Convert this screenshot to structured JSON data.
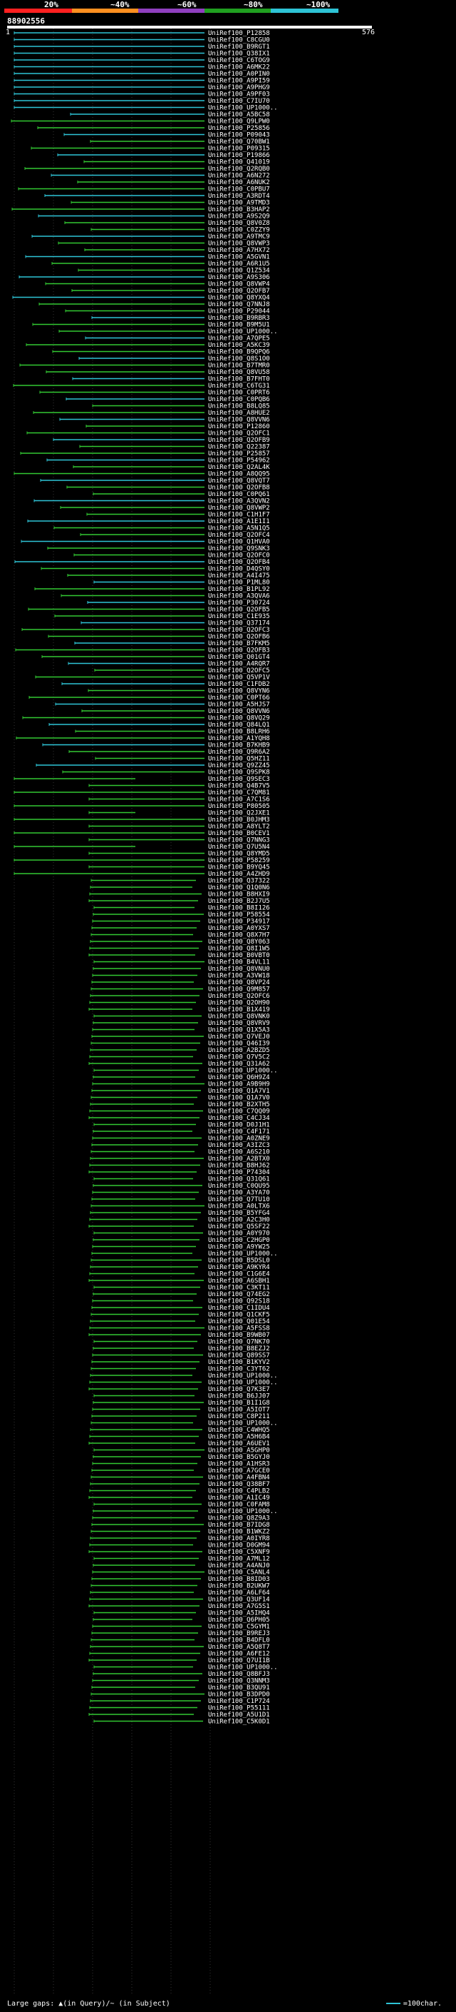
{
  "scale": {
    "labels": [
      {
        "text": "20%",
        "color": "#ff2020"
      },
      {
        "text": "~40%",
        "color": "#ff9020"
      },
      {
        "text": "~60%",
        "color": "#9040c0"
      },
      {
        "text": "~80%",
        "color": "#20a020"
      },
      {
        "text": "~100%",
        "color": "#2ec4d6"
      }
    ]
  },
  "query": {
    "id": "88902556",
    "start": "1",
    "end": "576"
  },
  "colors": {
    "high": "#2ec4d6",
    "mid": "#32c832",
    "gap": "#ffffff"
  },
  "hits": [
    "UniRef100_P12858",
    "UniRef100_C8CGU0",
    "UniRef100_B9RGT1",
    "UniRef100_Q38IX1",
    "UniRef100_C6TOG9",
    "UniRef100_A6MK22",
    "UniRef100_A0PIN0",
    "UniRef100_A9PI59",
    "UniRef100_A9PHG9",
    "UniRef100_A9PF03",
    "UniRef100_C7IU70",
    "UniRef100_UP1000..",
    "UniRef100_A5BC58",
    "UniRef100_Q9LPW0",
    "UniRef100_P25856",
    "UniRef100_P09043",
    "UniRef100_Q70BW1",
    "UniRef100_P09315",
    "UniRef100_P19866",
    "UniRef100_Q41019",
    "UniRef100_Q2RQB0",
    "UniRef100_A6N272",
    "UniRef100_A6NUK2",
    "UniRef100_C0PBU7",
    "UniRef100_A3RDT4",
    "UniRef100_A9TMD3",
    "UniRef100_B3HAP2",
    "UniRef100_A9S2Q9",
    "UniRef100_Q8V0Z8",
    "UniRef100_C0ZZY9",
    "UniRef100_A9TMC9",
    "UniRef100_Q8VWP3",
    "UniRef100_A7HX72",
    "UniRef100_A5GVN1",
    "UniRef100_A6R1U5",
    "UniRef100_Q1Z534",
    "UniRef100_A9S306",
    "UniRef100_Q8VWP4",
    "UniRef100_Q2OFB7",
    "UniRef100_Q8YXQ4",
    "UniRef100_Q7NNJ8",
    "UniRef100_P29044",
    "UniRef100_B9RBR3",
    "UniRef100_B9M5U1",
    "UniRef100_UP1000..",
    "UniRef100_A7QPE5",
    "UniRef100_A5KC39",
    "UniRef100_B9QPQ6",
    "UniRef100_Q8S1O0",
    "UniRef100_B7TMR0",
    "UniRef100_Q8VU58",
    "UniRef100_B7FHT0",
    "UniRef100_C6TG31",
    "UniRef100_C0PRT6",
    "UniRef100_C0PQB6",
    "UniRef100_B8LQ85",
    "UniRef100_A8HUE2",
    "UniRef100_Q8VVN6",
    "UniRef100_P12860",
    "UniRef100_Q2OFC1",
    "UniRef100_Q2OFB9",
    "UniRef100_Q22387",
    "UniRef100_P25857",
    "UniRef100_P54962",
    "UniRef100_Q2AL4K",
    "UniRef100_A8QQ95",
    "UniRef100_Q8VQT7",
    "UniRef100_Q2OFB8",
    "UniRef100_C0PQ61",
    "UniRef100_A3QVN2",
    "UniRef100_Q8VWP2",
    "UniRef100_C1H1F7",
    "UniRef100_A1E1I1",
    "UniRef100_A5N1Q5",
    "UniRef100_Q2OFC4",
    "UniRef100_Q1HVA0",
    "UniRef100_Q9SNK3",
    "UniRef100_Q2OFC0",
    "UniRef100_Q2OFB4",
    "UniRef100_D4QSY0",
    "UniRef100_A4I475",
    "UniRef100_P1ML80",
    "UniRef100_B1PL92",
    "UniRef100_A3QVA6",
    "UniRef100_P30724",
    "UniRef100_Q2OFB5",
    "UniRef100_C1E935",
    "UniRef100_Q37174",
    "UniRef100_Q2OFC3",
    "UniRef100_Q2OFB6",
    "UniRef100_B7FKM5",
    "UniRef100_Q2OFB3",
    "UniRef100_Q01GT4",
    "UniRef100_A4RQR7",
    "UniRef100_Q2OFC5",
    "UniRef100_Q5VP1V",
    "UniRef100_C1FDB2",
    "UniRef100_Q8VYN6",
    "UniRef100_C0PT66",
    "UniRef100_A5HJS7",
    "UniRef100_Q8VVN6",
    "UniRef100_Q8VQ29",
    "UniRef100_Q84LQ1",
    "UniRef100_B8LRH6",
    "UniRef100_A1YQH8",
    "UniRef100_B7KHB9",
    "UniRef100_Q9R6A2",
    "UniRef100_Q5HZ11",
    "UniRef100_Q9ZZ45",
    "UniRef100_Q9SPK8",
    "UniRef100_Q9SEC3",
    "UniRef100_Q4B7V5",
    "UniRef100_C7QM81",
    "UniRef100_A7C1S6",
    "UniRef100_P80505",
    "UniRef100_Q2JXE1",
    "UniRef100_B0JHM3",
    "UniRef100_A8YLT2",
    "UniRef100_B0CEV1",
    "UniRef100_Q7NNG3",
    "UniRef100_Q7U5N4",
    "UniRef100_Q8YMD5",
    "UniRef100_P58259",
    "UniRef100_B9YQ45",
    "UniRef100_A4ZHD9",
    "UniRef100_Q37322",
    "UniRef100_Q1Q0N6",
    "UniRef100_B8HXI9",
    "UniRef100_B2J7U5",
    "UniRef100_B8I126",
    "UniRef100_P58554",
    "UniRef100_P34917",
    "UniRef100_A0YXS7",
    "UniRef100_Q8X7H7",
    "UniRef100_Q8Y063",
    "UniRef100_Q8I1W5",
    "UniRef100_B0VBT0",
    "UniRef100_B4VL11",
    "UniRef100_Q8VNU0",
    "UniRef100_A3VW18",
    "UniRef100_Q8VP24",
    "UniRef100_Q9M857",
    "UniRef100_Q2OFC6",
    "UniRef100_Q2OH90",
    "UniRef100_B1X419",
    "UniRef100_Q8VNK0",
    "UniRef100_Q8VRV9",
    "UniRef100_Q1X5A3",
    "UniRef100_Q7VEJ0",
    "UniRef100_Q46I39",
    "UniRef100_A2BZD5",
    "UniRef100_Q7V5C2",
    "UniRef100_Q31A62",
    "UniRef100_UP1000..",
    "UniRef100_Q6H9Z4",
    "UniRef100_A9B9H9",
    "UniRef100_Q1A7V1",
    "UniRef100_Q1A7V0",
    "UniRef100_B2XTH5",
    "UniRef100_C7QQ09",
    "UniRef100_C4CJ34",
    "UniRef100_D0J1H1",
    "UniRef100_C4F171",
    "UniRef100_A0ZNE9",
    "UniRef100_A3IZC3",
    "UniRef100_A6S210",
    "UniRef100_A2BTX0",
    "UniRef100_B8HJ62",
    "UniRef100_P74304",
    "UniRef100_Q31Q61",
    "UniRef100_C0QU95",
    "UniRef100_A3YA70",
    "UniRef100_Q7TU10",
    "UniRef100_A0LTX6",
    "UniRef100_B5YFG4",
    "UniRef100_A2C3H0",
    "UniRef100_Q5SF22",
    "UniRef100_A0Y970",
    "UniRef100_C2HGP0",
    "UniRef100_A9YW25",
    "UniRef100_UP1000..",
    "UniRef100_B5DSL0",
    "UniRef100_A9KYR4",
    "UniRef100_C1G6E4",
    "UniRef100_A6SBH1",
    "UniRef100_C3KT11",
    "UniRef100_Q74EG2",
    "UniRef100_Q92S18",
    "UniRef100_C1IDU4",
    "UniRef100_Q1CKF5",
    "UniRef100_Q01E54",
    "UniRef100_A5FSS8",
    "UniRef100_B9WB07",
    "UniRef100_Q7NK70",
    "UniRef100_B8EZJ2",
    "UniRef100_Q89SS7",
    "UniRef100_B1KYV2",
    "UniRef100_C3YT62",
    "UniRef100_UP1000..",
    "UniRef100_UP1000..",
    "UniRef100_Q7K3E7",
    "UniRef100_B6JJ07",
    "UniRef100_B1I1G8",
    "UniRef100_A5IOT7",
    "UniRef100_C8P211",
    "UniRef100_UP1000..",
    "UniRef100_C4WHQ5",
    "UniRef100_A5H6B4",
    "UniRef100_A6UEV1",
    "UniRef100_A5GHP0",
    "UniRef100_B5GYJ0",
    "UniRef100_A1HSR3",
    "UniRef100_A7GCE0",
    "UniRef100_A4FBN4",
    "UniRef100_Q38BF7",
    "UniRef100_C4PLB2",
    "UniRef100_A1IC49",
    "UniRef100_C0FAM8",
    "UniRef100_UP1000..",
    "UniRef100_Q8Z9A3",
    "UniRef100_B7IDG8",
    "UniRef100_B1WKZ2",
    "UniRef100_A0IYR8",
    "UniRef100_D0GM94",
    "UniRef100_C5XNF9",
    "UniRef100_A7ML12",
    "UniRef100_A4ANJ0",
    "UniRef100_C5ANL4",
    "UniRef100_B8ID03",
    "UniRef100_B2UKW7",
    "UniRef100_A6LF64",
    "UniRef100_Q3UF14",
    "UniRef100_A7G5S1",
    "UniRef100_A5IHQ4",
    "UniRef100_Q6PH05",
    "UniRef100_C5GYM1",
    "UniRef100_B9REJ3",
    "UniRef100_B4DFL0",
    "UniRef100_A5Q8T7",
    "UniRef100_A6FE12",
    "UniRef100_Q7UI1B",
    "UniRef100_UP1000..",
    "UniRef100_Q8BFJ3",
    "UniRef100_Q3NNM3",
    "UniRef100_B3QU91",
    "UniRef100_B3DPD0",
    "UniRef100_C1P724",
    "UniRef100_P55111",
    "UniRef100_A5U1D1",
    "UniRef100_C5K0D1"
  ],
  "legend": {
    "left": "Large gaps: ▲(in Query)/~ (in Subject)",
    "right": "=100char."
  }
}
